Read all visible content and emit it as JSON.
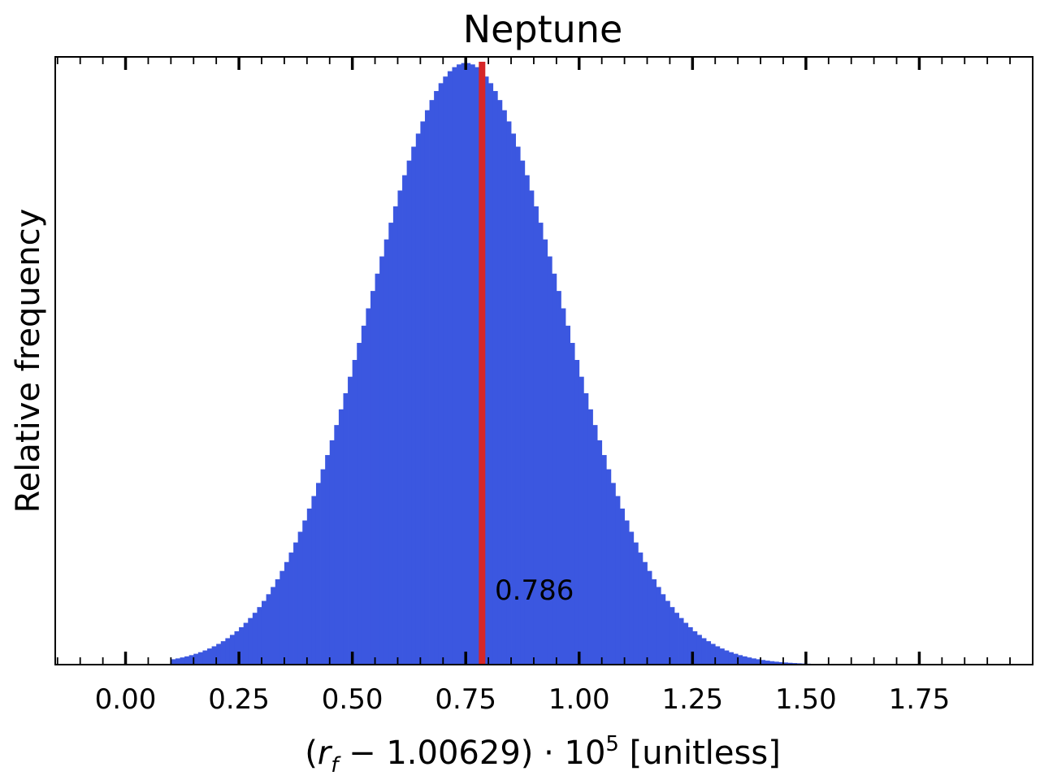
{
  "chart_data": {
    "type": "bar",
    "title": "Neptune",
    "xlabel": {
      "open": "(",
      "var": "r",
      "sub": "f",
      "mid": " − 1.00629) · 10",
      "sup": "5",
      "tail": " [unitless]"
    },
    "ylabel": "Relative frequency",
    "xlim": [
      -0.155,
      2.0
    ],
    "ylim": [
      0,
      1.01
    ],
    "xticks": [
      "0.00",
      "0.25",
      "0.50",
      "0.75",
      "1.00",
      "1.25",
      "1.50",
      "1.75"
    ],
    "yticks_visible": false,
    "histogram": {
      "distribution": "approximately normal",
      "center": 0.75,
      "spread_sd": 0.21,
      "range": [
        0.1,
        1.6
      ],
      "bin_width": 0.01,
      "color": "#3b57e0"
    },
    "marker": {
      "x": 0.786,
      "label": "0.786",
      "color": "#d62728"
    }
  }
}
